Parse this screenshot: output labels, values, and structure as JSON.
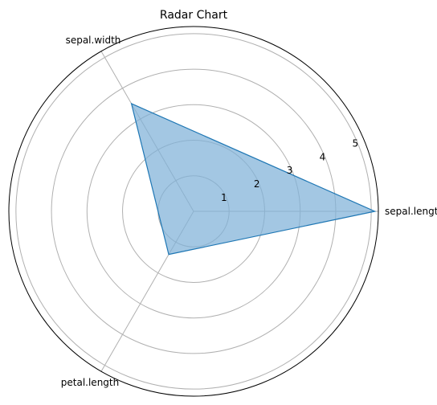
{
  "chart_data": {
    "type": "radar",
    "title": "Radar Chart",
    "axes": [
      "sepal.length",
      "sepal.width",
      "petal.length"
    ],
    "series": [
      {
        "values": [
          5.1,
          3.5,
          1.4
        ],
        "color": "#1f77b4"
      }
    ],
    "rlim": [
      0,
      5.2
    ],
    "rticks": [
      1,
      2,
      3,
      4,
      5
    ],
    "grid": true
  },
  "colors": {
    "line": "#1f77b4",
    "fill": "#7fb2d8",
    "grid": "#b0b0b0",
    "frame": "#000000"
  }
}
